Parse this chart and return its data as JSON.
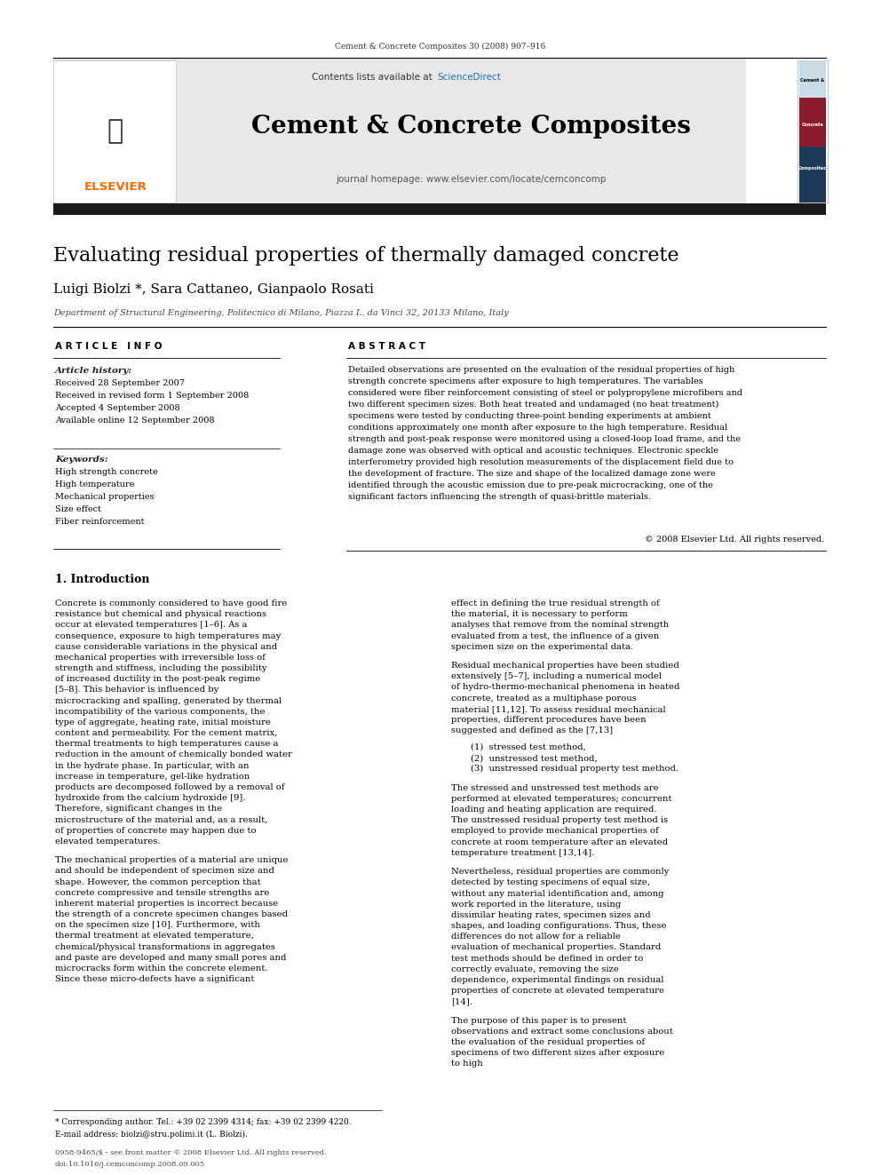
{
  "page_width": 9.92,
  "page_height": 13.23,
  "bg_color": "#ffffff",
  "journal_header": "Cement & Concrete Composites 30 (2008) 907–916",
  "journal_name": "Cement & Concrete Composites",
  "sciencedirect_color": "#1f6fb5",
  "journal_homepage": "journal homepage: www.elsevier.com/locate/cemconcomp",
  "elsevier_color": "#ff6600",
  "elsevier_text": "ELSEVIER",
  "header_bg": "#e8e8e8",
  "black_bar_color": "#1a1a1a",
  "paper_title": "Evaluating residual properties of thermally damaged concrete",
  "authors": "Luigi Biolzi *, Sara Cattaneo, Gianpaolo Rosati",
  "affiliation": "Department of Structural Engineering, Politecnico di Milano, Piazza L. da Vinci 32, 20133 Milano, Italy",
  "article_info_label": "A R T I C L E   I N F O",
  "abstract_label": "A B S T R A C T",
  "article_history_label": "Article history:",
  "received1": "Received 28 September 2007",
  "received2": "Received in revised form 1 September 2008",
  "accepted": "Accepted 4 September 2008",
  "available": "Available online 12 September 2008",
  "keywords_label": "Keywords:",
  "keywords": [
    "High strength concrete",
    "High temperature",
    "Mechanical properties",
    "Size effect",
    "Fiber reinforcement"
  ],
  "abstract_text": "Detailed observations are presented on the evaluation of the residual properties of high strength concrete specimens after exposure to high temperatures. The variables considered were fiber reinforcement consisting of steel or polypropylene microfibers and two different specimen sizes. Both heat treated and undamaged (no heat treatment) specimens were tested by conducting three-point bending experiments at ambient conditions approximately one month after exposure to the high temperature. Residual strength and post-peak response were monitored using a closed-loop load frame, and the damage zone was observed with optical and acoustic techniques. Electronic speckle interferometry provided high resolution measurements of the displacement field due to the development of fracture. The size and shape of the localized damage zone were identified through the acoustic emission due to pre-peak microcracking, one of the significant factors influencing the strength of quasi-brittle materials.",
  "copyright": "© 2008 Elsevier Ltd. All rights reserved.",
  "section1_title": "1. Introduction",
  "intro_text_left": "Concrete is commonly considered to have good fire resistance but chemical and physical reactions occur at elevated temperatures [1–6]. As a consequence, exposure to high temperatures may cause considerable variations in the physical and mechanical properties with irreversible loss of strength and stiffness, including the possibility of increased ductility in the post-peak regime [5–8]. This behavior is influenced by microcracking and spalling, generated by thermal incompatibility of the various components, the type of aggregate, heating rate, initial moisture content and permeability. For the cement matrix, thermal treatments to high temperatures cause a reduction in the amount of chemically bonded water in the hydrate phase. In particular, with an increase in temperature, gel-like hydration products are decomposed followed by a removal of hydroxide from the calcium hydroxide [9]. Therefore, significant changes in the microstructure of the material and, as a result, of properties of concrete may happen due to elevated temperatures.",
  "intro_text_left2": "The mechanical properties of a material are unique and should be independent of specimen size and shape. However, the common perception that concrete compressive and tensile strengths are inherent material properties is incorrect because the strength of a concrete specimen changes based on the specimen size [10]. Furthermore, with thermal treatment at elevated temperature, chemical/physical transformations in aggregates and paste are developed and many small pores and microcracks form within the concrete element. Since these micro-defects have a significant",
  "intro_text_right": "effect in defining the true residual strength of the material, it is necessary to perform analyses that remove from the nominal strength evaluated from a test, the influence of a given specimen size on the experimental data.",
  "intro_text_right2": "Residual mechanical properties have been studied extensively [5–7], including a numerical model of hydro-thermo-mechanical phenomena in heated concrete, treated as a multiphase porous material [11,12]. To assess residual mechanical properties, different procedures have been suggested and defined as the [7,13]",
  "numbered_list": [
    "(1)  stressed test method,",
    "(2)  unstressed test method,",
    "(3)  unstressed residual property test method."
  ],
  "intro_text_right3": "The stressed and unstressed test methods are performed at elevated temperatures; concurrent loading and heating application are required. The unstressed residual property test method is employed to provide mechanical properties of concrete at room temperature after an elevated temperature treatment [13,14].",
  "intro_text_right4": "Nevertheless, residual properties are commonly detected by testing specimens of equal size, without any material identification and, among work reported in the literature, using dissimilar heating rates, specimen sizes and shapes, and loading configurations. Thus, these differences do not allow for a reliable evaluation of mechanical properties. Standard test methods should be defined in order to correctly evaluate, removing the size dependence, experimental findings on residual properties of concrete at elevated temperature [14].",
  "intro_text_right5": "The purpose of this paper is to present observations and extract some conclusions about the evaluation of the residual properties of specimens of two different sizes after exposure to high",
  "footnote_star": "* Corresponding author. Tel.: +39 02 2399 4314; fax: +39 02 2399 4220.",
  "footnote_email": "E-mail address: biolzi@stru.polimi.it (L. Biolzi).",
  "bottom_line1": "0958-9465/$ - see front matter © 2008 Elsevier Ltd. All rights reserved.",
  "bottom_line2": "doi:10.1016/j.cemconcomp.2008.09.005"
}
